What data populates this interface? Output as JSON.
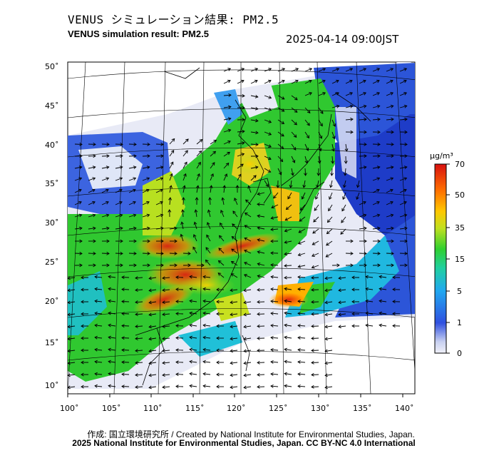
{
  "header": {
    "title_jp": "VENUS シミュレーション結果: PM2.5",
    "title_en": "VENUS simulation result: PM2.5",
    "timestamp": "2025-04-14 09:00JST"
  },
  "footer": {
    "credit": "作成: 国立環境研究所 / Created by National Institute for Environmental Studies, Japan.",
    "license": "2025 National Institute for Environmental Studies, Japan. CC BY-NC 4.0 International"
  },
  "map": {
    "lon_ticks": [
      "100˚",
      "105˚",
      "110˚",
      "115˚",
      "120˚",
      "125˚",
      "130˚",
      "135˚",
      "140˚"
    ],
    "lat_ticks": [
      "50˚",
      "45˚",
      "40˚",
      "35˚",
      "30˚",
      "25˚",
      "20˚",
      "15˚",
      "10˚"
    ]
  },
  "colorbar": {
    "unit": "μg/m³",
    "tick_labels": [
      "70",
      "50",
      "35",
      "15",
      "5",
      "1",
      "0"
    ],
    "colors": [
      "#e8eef8",
      "#1e3cd0",
      "#1fd0ff",
      "#20c020",
      "#a0e020",
      "#ffd000",
      "#ff6000",
      "#d00000"
    ]
  }
}
